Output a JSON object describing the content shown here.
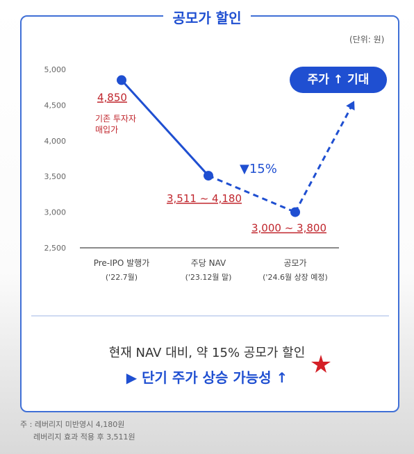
{
  "title": "공모가 할인",
  "unit": "(단위: 원)",
  "chart_data": {
    "type": "line",
    "categories": [
      {
        "line1": "Pre-IPO 발행가",
        "line2": "('22.7월)"
      },
      {
        "line1": "주당 NAV",
        "line2": "('23.12월 말)"
      },
      {
        "line1": "공모가",
        "line2": "('24.6월 상장 예정)"
      }
    ],
    "values": [
      4850,
      3511,
      3000
    ],
    "ylim": [
      2500,
      5000
    ],
    "yticks": [
      2500,
      3000,
      3500,
      4000,
      4500,
      5000
    ],
    "ytick_labels": [
      "2,500",
      "3,000",
      "3,500",
      "4,000",
      "4,500",
      "5,000"
    ],
    "grid": false,
    "data_labels": [
      "4,850",
      "3,511 ~ 4,180",
      "3,000 ~ 3,800"
    ],
    "annotations": {
      "preipo_note_line1": "기존 투자자",
      "preipo_note_line2": "매입가",
      "discount": "▼15%",
      "expectation": "주가 ↑ 기대"
    },
    "projection_end_value": 4560
  },
  "summary": {
    "line1": "현재 NAV 대비, 약 15% 공모가 할인",
    "line2": "▶ 단기 주가 상승 가능성 ↑"
  },
  "notes": {
    "line1": "주 : 레버리지 미반영시 4,180원",
    "line2": "레버리지 효과 적용 후 3,511원"
  },
  "colors": {
    "accent": "#1f4fd1",
    "label_red": "#c0262d",
    "star_red": "#d42027"
  }
}
